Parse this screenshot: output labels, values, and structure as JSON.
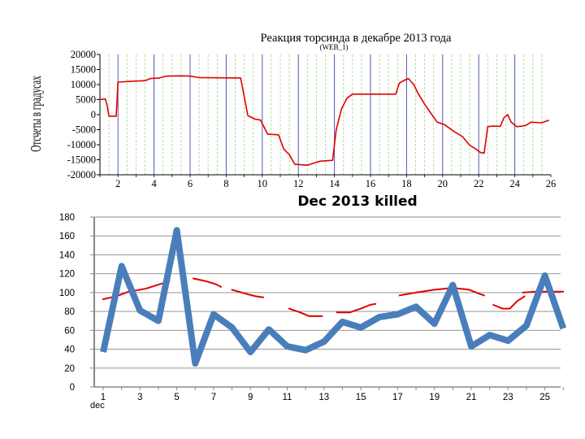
{
  "chart_data": [
    {
      "type": "line",
      "title": "Реакция торсинда в декабре 2013 года",
      "subtitle": "(WEB_1)",
      "ylabel": "Отсчеты в градусах",
      "xlabel": "",
      "ylim": [
        -20000,
        20000
      ],
      "xlim": [
        1,
        26
      ],
      "yticks": [
        "20000",
        "15000",
        "10000",
        "5000",
        "0",
        "-5000",
        "-10000",
        "-15000",
        "-20000"
      ],
      "xticks": [
        "2",
        "4",
        "6",
        "8",
        "10",
        "12",
        "14",
        "16",
        "18",
        "20",
        "22",
        "24",
        "26"
      ],
      "grid": true,
      "colors": {
        "series": "#e00000",
        "major_grid": "#5555aa",
        "minor_grid": "#9fe09f"
      },
      "series": [
        {
          "points": [
            [
              1.0,
              5000
            ],
            [
              1.3,
              5200
            ],
            [
              1.4,
              3000
            ],
            [
              1.5,
              -500
            ],
            [
              1.9,
              -500
            ],
            [
              2.0,
              10800
            ],
            [
              2.5,
              11000
            ],
            [
              3.5,
              11300
            ],
            [
              3.8,
              12000
            ],
            [
              4.3,
              12200
            ],
            [
              4.7,
              12800
            ],
            [
              5.5,
              12900
            ],
            [
              6.0,
              12800
            ],
            [
              6.5,
              12300
            ],
            [
              8.8,
              12200
            ],
            [
              9.0,
              6000
            ],
            [
              9.2,
              -300
            ],
            [
              9.6,
              -1500
            ],
            [
              9.9,
              -1800
            ],
            [
              10.3,
              -6500
            ],
            [
              10.9,
              -6700
            ],
            [
              11.2,
              -11500
            ],
            [
              11.5,
              -13300
            ],
            [
              11.8,
              -16500
            ],
            [
              12.5,
              -16800
            ],
            [
              13.2,
              -15500
            ],
            [
              13.9,
              -15200
            ],
            [
              14.1,
              -5000
            ],
            [
              14.4,
              2000
            ],
            [
              14.7,
              5500
            ],
            [
              15.0,
              6800
            ],
            [
              16.2,
              6800
            ],
            [
              17.4,
              6800
            ],
            [
              17.6,
              10500
            ],
            [
              17.9,
              11500
            ],
            [
              18.1,
              12000
            ],
            [
              18.4,
              10000
            ],
            [
              18.6,
              7500
            ],
            [
              19.0,
              3500
            ],
            [
              19.4,
              0
            ],
            [
              19.7,
              -2500
            ],
            [
              20.1,
              -3300
            ],
            [
              20.6,
              -5500
            ],
            [
              21.1,
              -7300
            ],
            [
              21.5,
              -10200
            ],
            [
              21.8,
              -11300
            ],
            [
              22.1,
              -12600
            ],
            [
              22.3,
              -12800
            ],
            [
              22.5,
              -4000
            ],
            [
              22.8,
              -3800
            ],
            [
              23.2,
              -3900
            ],
            [
              23.4,
              -1000
            ],
            [
              23.6,
              0
            ],
            [
              23.8,
              -2500
            ],
            [
              24.1,
              -4000
            ],
            [
              24.4,
              -3800
            ],
            [
              24.6,
              -3600
            ],
            [
              24.9,
              -2500
            ],
            [
              25.5,
              -2700
            ],
            [
              25.9,
              -1800
            ]
          ]
        }
      ]
    },
    {
      "type": "line",
      "title": "Dec 2013 killed",
      "xlabel": "dec",
      "ylabel": "",
      "ylim": [
        0,
        180
      ],
      "yticks": [
        "0",
        "20",
        "40",
        "60",
        "80",
        "100",
        "120",
        "140",
        "160",
        "180"
      ],
      "xlim": [
        1,
        26
      ],
      "xticks": [
        "1",
        "3",
        "5",
        "7",
        "9",
        "11",
        "13",
        "15",
        "17",
        "19",
        "21",
        "23",
        "25"
      ],
      "grid": true,
      "colors": {
        "series": "#4a7ebb",
        "trend": "#e00000",
        "grid": "#888888"
      },
      "series": [
        {
          "x": [
            1,
            2,
            3,
            4,
            5,
            6,
            7,
            8,
            9,
            10,
            11,
            12,
            13,
            14,
            15,
            16,
            17,
            18,
            19,
            20,
            21,
            22,
            23,
            24,
            25,
            26
          ],
          "values": [
            37,
            128,
            81,
            70,
            166,
            25,
            77,
            63,
            37,
            61,
            43,
            39,
            48,
            69,
            63,
            74,
            77,
            85,
            67,
            108,
            43,
            55,
            49,
            65,
            118,
            62
          ]
        }
      ],
      "trend_segments": [
        [
          [
            1,
            93
          ],
          [
            1.7,
            96
          ],
          [
            2.4,
            101
          ]
        ],
        [
          [
            2.4,
            101
          ],
          [
            3.3,
            104
          ],
          [
            4.1,
            109
          ],
          [
            4.6,
            112
          ]
        ],
        [
          [
            5.9,
            115
          ],
          [
            6.6,
            112
          ],
          [
            7.1,
            109
          ],
          [
            7.4,
            106
          ]
        ],
        [
          [
            8.0,
            103
          ],
          [
            8.9,
            98
          ],
          [
            9.3,
            96
          ],
          [
            9.7,
            95
          ]
        ],
        [
          [
            11.1,
            83
          ],
          [
            11.7,
            79
          ],
          [
            12.2,
            75
          ],
          [
            12.9,
            75
          ]
        ],
        [
          [
            13.7,
            79
          ],
          [
            14.4,
            79
          ],
          [
            15.0,
            83
          ],
          [
            15.5,
            87
          ],
          [
            15.8,
            88
          ]
        ],
        [
          [
            17.1,
            97
          ],
          [
            18.0,
            100
          ],
          [
            19.0,
            103
          ],
          [
            20.0,
            105
          ],
          [
            20.9,
            103
          ],
          [
            21.4,
            99
          ],
          [
            21.7,
            97
          ]
        ],
        [
          [
            22.2,
            87
          ],
          [
            22.7,
            83
          ],
          [
            23.1,
            83
          ],
          [
            23.5,
            91
          ],
          [
            23.9,
            96
          ]
        ],
        [
          [
            23.8,
            100
          ],
          [
            24.5,
            101
          ],
          [
            25.5,
            101
          ],
          [
            26.0,
            101
          ]
        ]
      ]
    }
  ]
}
